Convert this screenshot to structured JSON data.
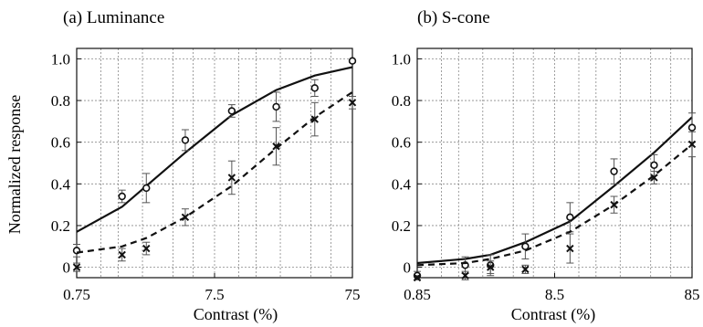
{
  "chart_data": [
    {
      "type": "line",
      "title": "(a) Luminance",
      "xlabel": "Contrast (%)",
      "ylabel": "Normalized response",
      "xscale": "log",
      "xlim": [
        0.75,
        75
      ],
      "ylim": [
        -0.05,
        1.05
      ],
      "x_ticks": [
        0.75,
        7.5,
        75
      ],
      "x_tick_labels": [
        "0.75",
        "7.5",
        "75"
      ],
      "y_ticks": [
        0,
        0.2,
        0.4,
        0.6,
        0.8,
        1.0
      ],
      "y_tick_labels": [
        "0",
        "0.2",
        "0.4",
        "0.6",
        "0.8",
        "1.0"
      ],
      "grid": true,
      "series": [
        {
          "marker": "circle",
          "line": "solid",
          "points": [
            {
              "x": 0.75,
              "y": 0.08,
              "err": 0.03
            },
            {
              "x": 1.6,
              "y": 0.34,
              "err": 0.03
            },
            {
              "x": 2.4,
              "y": 0.38,
              "err": 0.07
            },
            {
              "x": 4.6,
              "y": 0.61,
              "err": 0.05
            },
            {
              "x": 10,
              "y": 0.75,
              "err": 0.03
            },
            {
              "x": 21,
              "y": 0.77,
              "err": 0.07
            },
            {
              "x": 40,
              "y": 0.86,
              "err": 0.04
            },
            {
              "x": 75,
              "y": 0.99,
              "err": 0
            }
          ],
          "fit": [
            [
              0.75,
              0.17
            ],
            [
              1.6,
              0.29
            ],
            [
              2.4,
              0.39
            ],
            [
              4.6,
              0.55
            ],
            [
              10,
              0.73
            ],
            [
              21,
              0.85
            ],
            [
              40,
              0.92
            ],
            [
              75,
              0.96
            ]
          ]
        },
        {
          "marker": "x",
          "line": "dashed",
          "points": [
            {
              "x": 0.75,
              "y": 0.0,
              "err": 0.02
            },
            {
              "x": 1.6,
              "y": 0.06,
              "err": 0.03
            },
            {
              "x": 2.4,
              "y": 0.09,
              "err": 0.03
            },
            {
              "x": 4.6,
              "y": 0.24,
              "err": 0.04
            },
            {
              "x": 10,
              "y": 0.43,
              "err": 0.08
            },
            {
              "x": 21,
              "y": 0.58,
              "err": 0.09
            },
            {
              "x": 40,
              "y": 0.71,
              "err": 0.08
            },
            {
              "x": 75,
              "y": 0.79,
              "err": 0.03
            }
          ],
          "fit": [
            [
              0.75,
              0.07
            ],
            [
              1.6,
              0.1
            ],
            [
              2.4,
              0.14
            ],
            [
              4.6,
              0.24
            ],
            [
              10,
              0.39
            ],
            [
              21,
              0.57
            ],
            [
              40,
              0.72
            ],
            [
              75,
              0.84
            ]
          ]
        }
      ]
    },
    {
      "type": "line",
      "title": "(b) S-cone",
      "xlabel": "Contrast (%)",
      "ylabel": "",
      "xscale": "log",
      "xlim": [
        0.85,
        85
      ],
      "ylim": [
        -0.05,
        1.05
      ],
      "x_ticks": [
        0.85,
        8.5,
        85
      ],
      "x_tick_labels": [
        "0.85",
        "8.5",
        "85"
      ],
      "y_ticks": [
        0,
        0.2,
        0.4,
        0.6,
        0.8,
        1.0
      ],
      "y_tick_labels": [
        "0",
        "0.2",
        "0.4",
        "0.6",
        "0.8",
        "1.0"
      ],
      "grid": true,
      "series": [
        {
          "marker": "circle",
          "line": "solid",
          "points": [
            {
              "x": 0.85,
              "y": -0.04,
              "err": 0.02
            },
            {
              "x": 1.9,
              "y": 0.01,
              "err": 0.04
            },
            {
              "x": 2.9,
              "y": 0.01,
              "err": 0.05
            },
            {
              "x": 5.2,
              "y": 0.1,
              "err": 0.06
            },
            {
              "x": 11,
              "y": 0.24,
              "err": 0.07
            },
            {
              "x": 23,
              "y": 0.46,
              "err": 0.06
            },
            {
              "x": 45,
              "y": 0.49,
              "err": 0.05
            },
            {
              "x": 85,
              "y": 0.67,
              "err": 0.07
            }
          ],
          "fit": [
            [
              0.85,
              0.02
            ],
            [
              1.9,
              0.04
            ],
            [
              2.9,
              0.06
            ],
            [
              5.2,
              0.12
            ],
            [
              11,
              0.22
            ],
            [
              23,
              0.39
            ],
            [
              45,
              0.55
            ],
            [
              85,
              0.72
            ]
          ]
        },
        {
          "marker": "x",
          "line": "dashed",
          "points": [
            {
              "x": 0.85,
              "y": -0.05,
              "err": 0.01
            },
            {
              "x": 1.9,
              "y": -0.04,
              "err": 0.02
            },
            {
              "x": 2.9,
              "y": 0.0,
              "err": 0.03
            },
            {
              "x": 5.2,
              "y": -0.01,
              "err": 0.02
            },
            {
              "x": 11,
              "y": 0.09,
              "err": 0.07
            },
            {
              "x": 23,
              "y": 0.3,
              "err": 0.04
            },
            {
              "x": 45,
              "y": 0.43,
              "err": 0.03
            },
            {
              "x": 85,
              "y": 0.59,
              "err": 0.06
            }
          ],
          "fit": [
            [
              0.85,
              0.01
            ],
            [
              1.9,
              0.02
            ],
            [
              2.9,
              0.04
            ],
            [
              5.2,
              0.08
            ],
            [
              11,
              0.17
            ],
            [
              23,
              0.3
            ],
            [
              45,
              0.44
            ],
            [
              85,
              0.59
            ]
          ]
        }
      ]
    }
  ]
}
